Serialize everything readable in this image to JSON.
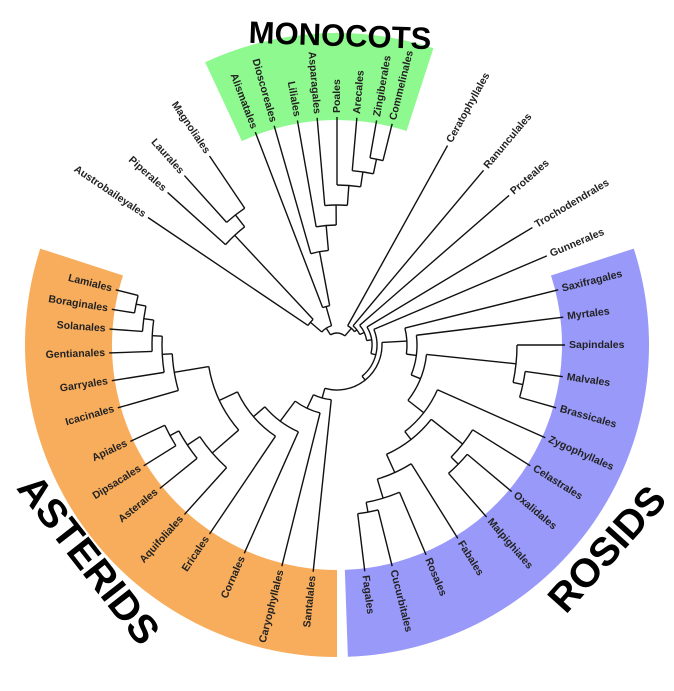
{
  "groups": [
    {
      "key": "monocots",
      "title": "MONOCOTS",
      "color": "#8ef98e"
    },
    {
      "key": "asterids",
      "title": "ASTERIDS",
      "color": "#f8ad5c"
    },
    {
      "key": "rosids",
      "title": "ROSIDS",
      "color": "#9999fa"
    }
  ],
  "leaves": [
    {
      "label": "Commelinales",
      "group": "monocots"
    },
    {
      "label": "Zingiberales",
      "group": "monocots"
    },
    {
      "label": "Arecales",
      "group": "monocots"
    },
    {
      "label": "Poales",
      "group": "monocots"
    },
    {
      "label": "Asparagales",
      "group": "monocots"
    },
    {
      "label": "Liliales",
      "group": "monocots"
    },
    {
      "label": "Dioscoreales",
      "group": "monocots"
    },
    {
      "label": "Alismatales",
      "group": "monocots"
    },
    {
      "label": "Magnoliales",
      "group": ""
    },
    {
      "label": "Laurales",
      "group": ""
    },
    {
      "label": "Piperales",
      "group": ""
    },
    {
      "label": "Austrobaileyales",
      "group": ""
    },
    {
      "label": "Lamiales",
      "group": "asterids"
    },
    {
      "label": "Boraginales",
      "group": "asterids"
    },
    {
      "label": "Solanales",
      "group": "asterids"
    },
    {
      "label": "Gentianales",
      "group": "asterids"
    },
    {
      "label": "Garryales",
      "group": "asterids"
    },
    {
      "label": "Icacinales",
      "group": "asterids"
    },
    {
      "label": "Apiales",
      "group": "asterids"
    },
    {
      "label": "Dipsacales",
      "group": "asterids"
    },
    {
      "label": "Asterales",
      "group": "asterids"
    },
    {
      "label": "Aquifoliales",
      "group": "asterids"
    },
    {
      "label": "Ericales",
      "group": "asterids"
    },
    {
      "label": "Cornales",
      "group": "asterids"
    },
    {
      "label": "Caryophyllales",
      "group": "asterids"
    },
    {
      "label": "Santalales",
      "group": "asterids"
    },
    {
      "label": "Fagales",
      "group": "rosids"
    },
    {
      "label": "Cucurbitales",
      "group": "rosids"
    },
    {
      "label": "Rosales",
      "group": "rosids"
    },
    {
      "label": "Fabales",
      "group": "rosids"
    },
    {
      "label": "Malpighiales",
      "group": "rosids"
    },
    {
      "label": "Oxalidales",
      "group": "rosids"
    },
    {
      "label": "Celastrales",
      "group": "rosids"
    },
    {
      "label": "Zygophyllales",
      "group": "rosids"
    },
    {
      "label": "Brassicales",
      "group": "rosids"
    },
    {
      "label": "Malvales",
      "group": "rosids"
    },
    {
      "label": "Sapindales",
      "group": "rosids"
    },
    {
      "label": "Myrtales",
      "group": "rosids"
    },
    {
      "label": "Saxifragales",
      "group": "rosids"
    },
    {
      "label": "Gunnerales",
      "group": ""
    },
    {
      "label": "Trochodendrales",
      "group": ""
    },
    {
      "label": "Proteales",
      "group": ""
    },
    {
      "label": "Ranunculales",
      "group": ""
    },
    {
      "label": "Ceratophyllales",
      "group": ""
    }
  ]
}
